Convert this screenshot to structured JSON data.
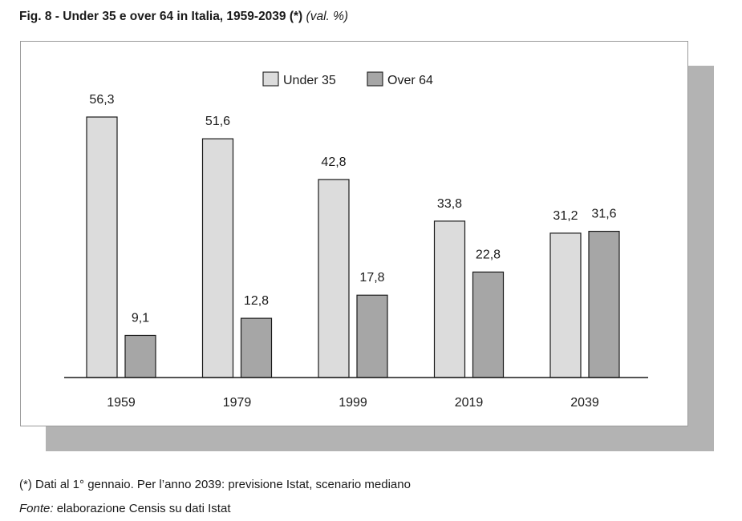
{
  "title": {
    "bold": "Fig. 8 - Under 35 e over 64 in Italia, 1959-2039 (*)",
    "italic": "(val. %)"
  },
  "chart_data": {
    "type": "bar",
    "categories": [
      "1959",
      "1979",
      "1999",
      "2019",
      "2039"
    ],
    "series": [
      {
        "name": "Under 35",
        "values": [
          56.3,
          51.6,
          42.8,
          33.8,
          31.2
        ],
        "labels": [
          "56,3",
          "51,6",
          "42,8",
          "33,8",
          "31,2"
        ],
        "color": "#dcdcdc"
      },
      {
        "name": "Over 64",
        "values": [
          9.1,
          12.8,
          17.8,
          22.8,
          31.6
        ],
        "labels": [
          "9,1",
          "12,8",
          "17,8",
          "22,8",
          "31,6"
        ],
        "color": "#a6a6a6"
      }
    ],
    "ylim": [
      0,
      56.3
    ],
    "legend_position": "top-center",
    "grid": false,
    "xlabel": "",
    "ylabel": ""
  },
  "footnote": "(*) Dati al 1° gennaio. Per l’anno 2039: previsione Istat, scenario mediano",
  "source": {
    "label": "Fonte:",
    "text": " elaborazione Censis su dati Istat"
  }
}
